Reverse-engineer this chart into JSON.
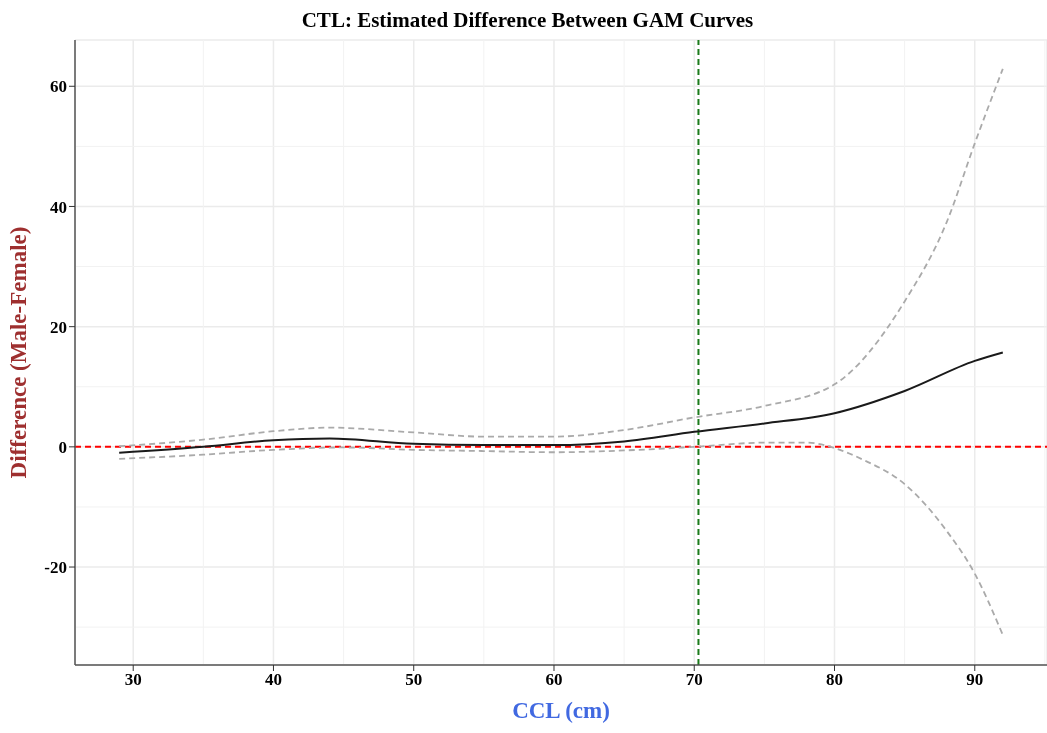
{
  "chart_data": {
    "type": "line",
    "title": "CTL: Estimated Difference Between GAM Curves",
    "xlabel": "CCL (cm)",
    "ylabel": "Difference (Male-Female)",
    "xlim": [
      25.85,
      95.15
    ],
    "xticks": [
      30,
      40,
      50,
      60,
      70,
      80,
      90
    ],
    "ylim": [
      -36.3,
      67.7
    ],
    "yticks": [
      -20,
      0,
      20,
      40,
      60
    ],
    "grid": true,
    "marker": "none",
    "series": [
      {
        "color": "#1a1a1a",
        "line_style": "solid",
        "x": [
          29,
          35,
          40,
          44,
          50,
          55,
          60,
          65,
          70,
          75,
          80,
          85,
          90,
          92
        ],
        "values": [
          -1.0,
          0.0,
          1.1,
          1.4,
          0.5,
          0.3,
          0.3,
          0.9,
          2.5,
          3.9,
          5.6,
          9.3,
          14.3,
          15.7
        ]
      },
      {
        "color": "#aaaaaa",
        "line_style": "dashed",
        "x": [
          29,
          35,
          40,
          44,
          50,
          55,
          60,
          65,
          70,
          75,
          80,
          85,
          88,
          90,
          92
        ],
        "values": [
          0.1,
          1.2,
          2.6,
          3.2,
          2.4,
          1.7,
          1.7,
          2.8,
          4.9,
          6.8,
          10.4,
          24.2,
          37.4,
          50.5,
          62.9
        ]
      },
      {
        "color": "#aaaaaa",
        "line_style": "dashed",
        "x": [
          29,
          35,
          40,
          45,
          50,
          55,
          60,
          65,
          70,
          75,
          78,
          80,
          82,
          85,
          88,
          90,
          92
        ],
        "values": [
          -2.0,
          -1.3,
          -0.5,
          -0.1,
          -0.5,
          -0.7,
          -0.9,
          -0.6,
          0.0,
          0.7,
          0.7,
          -0.2,
          -2.1,
          -6.2,
          -14.0,
          -21.1,
          -31.3
        ]
      }
    ],
    "ref_lines": [
      {
        "axis": "y",
        "value": 0,
        "color": "#ff0000",
        "line_style": "dashed"
      },
      {
        "axis": "x",
        "value": 70.3,
        "color": "#1a7a1a",
        "line_style": "dashed"
      }
    ]
  }
}
